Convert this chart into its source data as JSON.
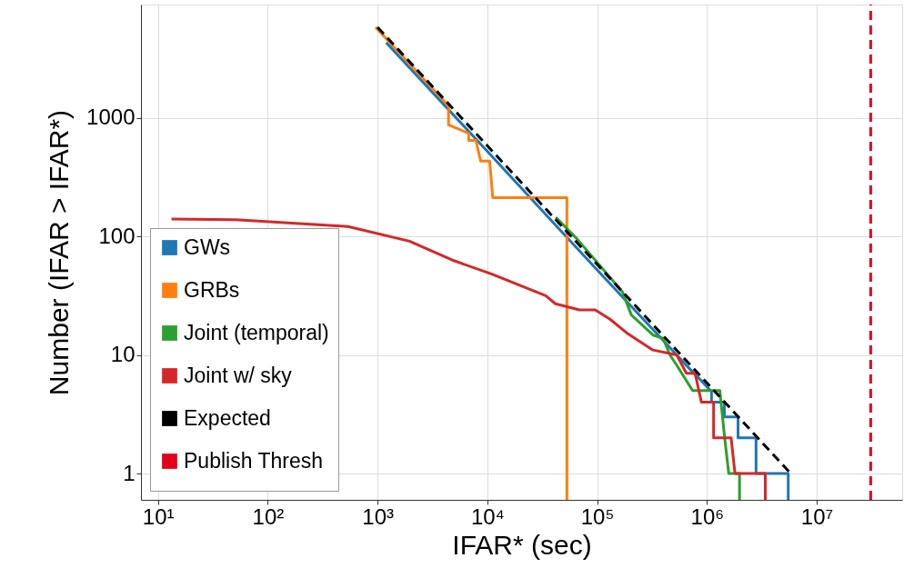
{
  "chart_data": {
    "type": "line",
    "xlabel": "IFAR* (sec)",
    "ylabel": "Number (IFAR > IFAR*)",
    "log": "xy",
    "grid": true,
    "legend": "bottom left",
    "line_style": "solid",
    "marker": "none",
    "xlim": [
      7,
      60000000
    ],
    "ylim": [
      0.6,
      9000
    ],
    "xticks": [
      {
        "value": 10,
        "label": "10¹"
      },
      {
        "value": 100,
        "label": "10²"
      },
      {
        "value": 1000,
        "label": "10³"
      },
      {
        "value": 10000,
        "label": "10⁴"
      },
      {
        "value": 100000,
        "label": "10⁵"
      },
      {
        "value": 1000000,
        "label": "10⁶"
      },
      {
        "value": 10000000,
        "label": "10⁷"
      }
    ],
    "yticks": [
      1,
      10,
      100,
      1000
    ],
    "series": [
      {
        "name": "GWs",
        "color": "#1f77b4",
        "x": [
          1200,
          10000,
          100000,
          530000,
          690000,
          930000,
          1100000,
          1100000,
          1440000,
          1440000,
          1920000,
          1920000,
          2800000,
          2800000,
          5500000,
          5500000
        ],
        "values": [
          4300,
          520,
          52,
          10,
          7.7,
          5.8,
          4.9,
          4,
          4,
          3,
          3,
          2,
          2,
          1,
          1,
          0.6
        ]
      },
      {
        "name": "GRBs",
        "color": "#ff7f0e",
        "x": [
          960,
          4430,
          4430,
          6760,
          6760,
          7860,
          8700,
          10500,
          11200,
          53000,
          53000
        ],
        "values": [
          5800,
          1260,
          870,
          740,
          645,
          645,
          430,
          430,
          212,
          212,
          0.6
        ]
      },
      {
        "name": "Joint (temporal)",
        "color": "#2ca02c",
        "x": [
          42000,
          65000,
          170000,
          205000,
          323000,
          398000,
          460000,
          530000,
          740000,
          1310000,
          1450000,
          1580000,
          1980000,
          1980000
        ],
        "values": [
          145,
          96,
          34,
          21.7,
          14.7,
          13.8,
          10,
          8.2,
          5,
          5,
          2,
          1,
          1,
          0.6
        ]
      },
      {
        "name": "Joint w/ sky",
        "color": "#d62728",
        "x": [
          13.3,
          51,
          537,
          1950,
          4800,
          11000,
          34000,
          41700,
          69000,
          96000,
          131000,
          192000,
          322000,
          530000,
          650000,
          780000,
          890000,
          1150000,
          1150000,
          1660000,
          1800000,
          3400000,
          3400000
        ],
        "values": [
          140,
          138,
          121,
          91,
          63,
          48,
          31.6,
          27,
          24,
          24,
          20,
          15,
          11,
          10,
          7,
          7,
          4,
          4,
          2,
          2,
          1,
          1,
          0.6
        ]
      },
      {
        "name": "Expected",
        "color": "#000000",
        "line_style": "dashed",
        "x": [
          1000,
          5800000
        ],
        "values": [
          5800,
          1
        ]
      },
      {
        "name": "Publish Thresh",
        "color": "#e3001b",
        "line_style": "dashed",
        "x": [
          31000000,
          31000000
        ],
        "values": [
          0.6,
          9000
        ]
      }
    ]
  }
}
